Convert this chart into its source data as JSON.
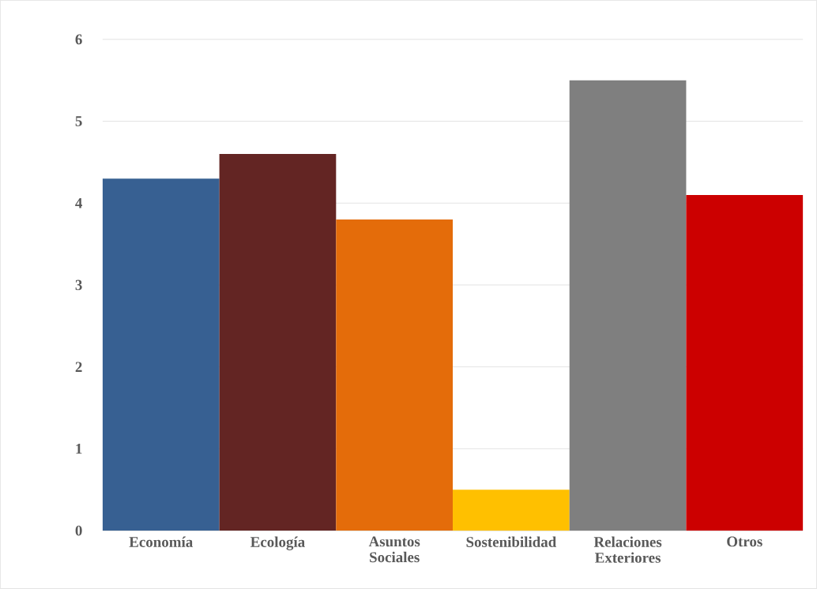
{
  "chart_data": {
    "type": "bar",
    "categories": [
      "Economía",
      "Ecología",
      "Asuntos Sociales",
      "Sostenibilidad",
      "Relaciones Exteriores",
      "Otros"
    ],
    "values": [
      4.3,
      4.6,
      3.8,
      0.5,
      5.5,
      4.1
    ],
    "colors": [
      "#376092",
      "#632523",
      "#e46c0a",
      "#ffc000",
      "#7f7f7f",
      "#cc0000"
    ],
    "ylim": [
      0,
      6
    ],
    "yticks": [
      0,
      1,
      2,
      3,
      4,
      5,
      6
    ],
    "grid": "y"
  }
}
